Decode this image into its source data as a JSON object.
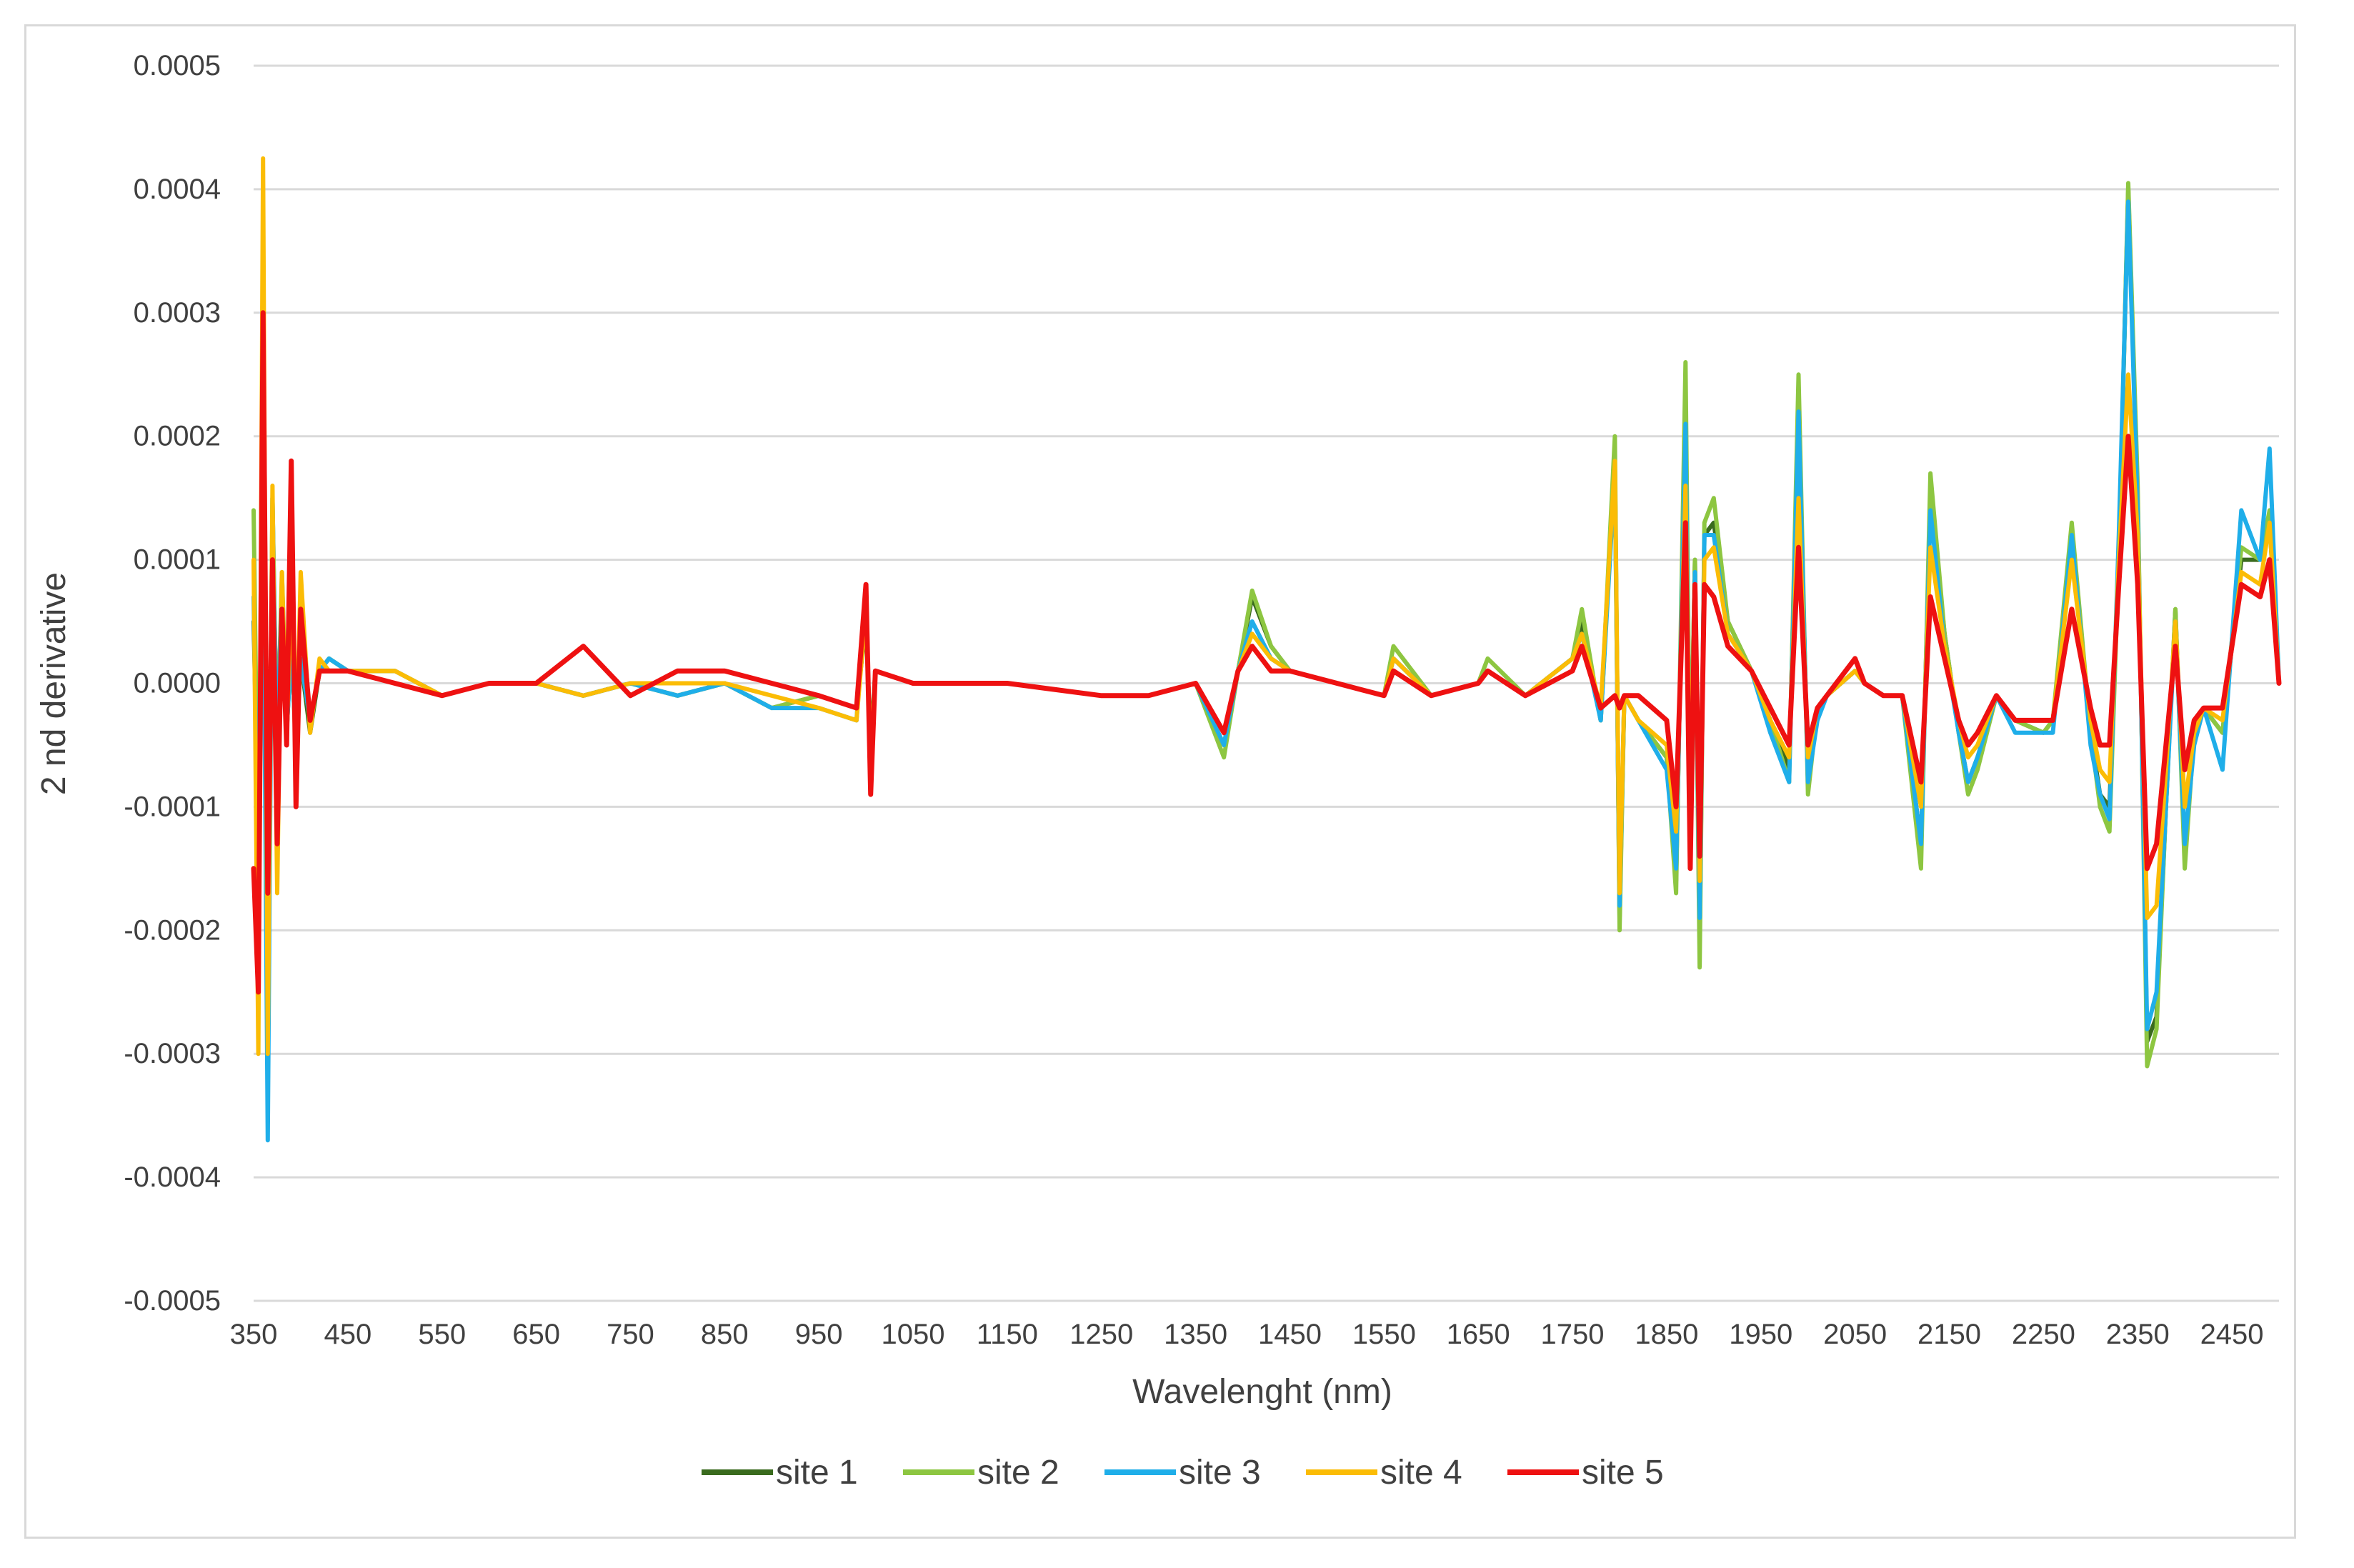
{
  "chart_data": {
    "type": "line",
    "title": "",
    "xlabel": "Wavelenght (nm)",
    "ylabel": "2 nd derivative",
    "xlim": [
      350,
      2500
    ],
    "ylim": [
      -0.0005,
      0.0005
    ],
    "x_ticks": [
      350,
      450,
      550,
      650,
      750,
      850,
      950,
      1050,
      1150,
      1250,
      1350,
      1450,
      1550,
      1650,
      1750,
      1850,
      1950,
      2050,
      2150,
      2250,
      2350,
      2450
    ],
    "x_tick_labels": [
      "350",
      "450",
      "550",
      "650",
      "750",
      "850",
      "950",
      "1050",
      "1150",
      "1250",
      "1350",
      "1450",
      "1550",
      "1650",
      "1750",
      "1850",
      "1950",
      "2050",
      "2150",
      "2250",
      "2350",
      "2450"
    ],
    "y_ticks": [
      0.0005,
      0.0004,
      0.0003,
      0.0002,
      0.0001,
      0,
      -0.0001,
      -0.0002,
      -0.0003,
      -0.0004,
      -0.0005
    ],
    "y_tick_labels": [
      "0.0005",
      "0.0004",
      "0.0003",
      "0.0002",
      "0.0001",
      "0.0000",
      "-0.0001",
      "-0.0002",
      "-0.0003",
      "-0.0004",
      "-0.0005"
    ],
    "grid": "horizontal",
    "legend_position": "bottom",
    "colors": {
      "site 1": "#3a6b1e",
      "site 2": "#8dc641",
      "site 3": "#1faee9",
      "site 4": "#fbbc05",
      "site 5": "#ee1111",
      "grid": "#d9d9d9",
      "axis": "#bfbfbf",
      "text": "#404040"
    },
    "series": [
      {
        "name": "site 1",
        "x": [
          350,
          355,
          360,
          365,
          370,
          375,
          380,
          385,
          390,
          395,
          400,
          410,
          420,
          430,
          450,
          500,
          550,
          600,
          650,
          700,
          750,
          800,
          850,
          900,
          950,
          990,
          1000,
          1005,
          1010,
          1050,
          1150,
          1250,
          1300,
          1350,
          1380,
          1395,
          1410,
          1430,
          1450,
          1500,
          1550,
          1560,
          1600,
          1650,
          1660,
          1700,
          1750,
          1760,
          1780,
          1795,
          1800,
          1805,
          1820,
          1850,
          1860,
          1870,
          1875,
          1880,
          1885,
          1890,
          1900,
          1915,
          1940,
          1960,
          1980,
          1990,
          2000,
          2010,
          2020,
          2050,
          2060,
          2080,
          2100,
          2120,
          2130,
          2145,
          2160,
          2170,
          2180,
          2200,
          2220,
          2250,
          2260,
          2280,
          2300,
          2310,
          2320,
          2330,
          2340,
          2350,
          2360,
          2370,
          2380,
          2390,
          2400,
          2410,
          2420,
          2440,
          2460,
          2480,
          2490,
          2500
        ],
        "values": [
          5e-05,
          -0.00012,
          0.0001,
          -0.0002,
          0.00013,
          -5e-05,
          8e-05,
          -4e-05,
          3e-05,
          -5e-05,
          2e-05,
          -4e-05,
          1e-05,
          2e-05,
          1e-05,
          1e-05,
          -1e-05,
          0.0,
          0.0,
          -1e-05,
          0.0,
          -1e-05,
          0.0,
          -2e-05,
          -1e-05,
          -2e-05,
          5e-05,
          -5e-05,
          1e-05,
          0.0,
          0.0,
          -1e-05,
          -1e-05,
          0.0,
          -5e-05,
          1e-05,
          7e-05,
          3e-05,
          1e-05,
          0.0,
          -1e-05,
          2e-05,
          -1e-05,
          0.0,
          1e-05,
          -1e-05,
          2e-05,
          5e-05,
          -3e-05,
          0.00018,
          -0.00019,
          -1e-05,
          -3e-05,
          -6e-05,
          -0.00016,
          0.00022,
          -0.0001,
          0.0001,
          -0.00021,
          0.00012,
          0.00013,
          5e-05,
          1e-05,
          -3e-05,
          -7e-05,
          0.00022,
          -8e-05,
          -2e-05,
          -1e-05,
          1e-05,
          0.0,
          -1e-05,
          -1e-05,
          -0.00013,
          0.00015,
          4e-05,
          -4e-05,
          -8e-05,
          -6e-05,
          -1e-05,
          -3e-05,
          -4e-05,
          -3e-05,
          0.00011,
          -4e-05,
          -9e-05,
          -0.0001,
          0.0001,
          0.0004,
          0.00015,
          -0.00029,
          -0.00027,
          -0.0001,
          6e-05,
          -0.00014,
          -4e-05,
          -2e-05,
          -4e-05,
          0.0001,
          0.0001,
          0.00013,
          0.0
        ]
      },
      {
        "name": "site 2",
        "x": [
          350,
          355,
          360,
          365,
          370,
          375,
          380,
          385,
          390,
          395,
          400,
          410,
          420,
          430,
          450,
          500,
          550,
          600,
          650,
          700,
          750,
          800,
          850,
          900,
          950,
          990,
          1000,
          1005,
          1010,
          1050,
          1150,
          1250,
          1300,
          1350,
          1380,
          1395,
          1410,
          1430,
          1450,
          1500,
          1550,
          1560,
          1600,
          1650,
          1660,
          1700,
          1750,
          1760,
          1780,
          1795,
          1800,
          1805,
          1820,
          1850,
          1860,
          1870,
          1875,
          1880,
          1885,
          1890,
          1900,
          1915,
          1940,
          1960,
          1980,
          1990,
          2000,
          2010,
          2020,
          2050,
          2060,
          2080,
          2100,
          2120,
          2130,
          2145,
          2160,
          2170,
          2180,
          2200,
          2220,
          2250,
          2260,
          2280,
          2300,
          2310,
          2320,
          2330,
          2340,
          2350,
          2360,
          2370,
          2380,
          2390,
          2400,
          2410,
          2420,
          2440,
          2460,
          2480,
          2490,
          2500
        ],
        "values": [
          0.00014,
          -0.00015,
          0.00012,
          -0.00024,
          0.00015,
          -6e-05,
          9e-05,
          -3e-05,
          4e-05,
          -6e-05,
          2e-05,
          -3e-05,
          1e-05,
          2e-05,
          1e-05,
          1e-05,
          -1e-05,
          0.0,
          0.0,
          -1e-05,
          0.0,
          -1e-05,
          0.0,
          -2e-05,
          -1e-05,
          -2e-05,
          6e-05,
          -6e-05,
          1e-05,
          0.0,
          0.0,
          -1e-05,
          -1e-05,
          0.0,
          -6e-05,
          1e-05,
          7.5e-05,
          3e-05,
          1e-05,
          0.0,
          -1e-05,
          3e-05,
          -1e-05,
          0.0,
          2e-05,
          -1e-05,
          2e-05,
          6e-05,
          -3e-05,
          0.0002,
          -0.0002,
          -1e-05,
          -3e-05,
          -6e-05,
          -0.00017,
          0.00026,
          -0.0001,
          0.0001,
          -0.00023,
          0.00013,
          0.00015,
          5e-05,
          1e-05,
          -3e-05,
          -8e-05,
          0.00025,
          -9e-05,
          -2e-05,
          -1e-05,
          1e-05,
          0.0,
          -1e-05,
          -1e-05,
          -0.00015,
          0.00017,
          4e-05,
          -4e-05,
          -9e-05,
          -7e-05,
          -1e-05,
          -3e-05,
          -4e-05,
          -3e-05,
          0.00013,
          -4e-05,
          -0.0001,
          -0.00012,
          0.0001,
          0.000405,
          0.00016,
          -0.00031,
          -0.00028,
          -0.0001,
          6e-05,
          -0.00015,
          -4e-05,
          -2e-05,
          -4e-05,
          0.00011,
          0.0001,
          0.00014,
          0.0
        ]
      },
      {
        "name": "site 3",
        "x": [
          350,
          355,
          360,
          365,
          370,
          375,
          380,
          385,
          390,
          395,
          400,
          410,
          420,
          430,
          450,
          500,
          550,
          600,
          650,
          700,
          750,
          800,
          850,
          900,
          950,
          990,
          1000,
          1005,
          1010,
          1050,
          1150,
          1250,
          1300,
          1350,
          1380,
          1395,
          1410,
          1430,
          1450,
          1500,
          1550,
          1560,
          1600,
          1650,
          1660,
          1700,
          1750,
          1760,
          1780,
          1795,
          1800,
          1805,
          1820,
          1850,
          1860,
          1870,
          1875,
          1880,
          1885,
          1890,
          1900,
          1915,
          1940,
          1960,
          1980,
          1990,
          2000,
          2010,
          2020,
          2050,
          2060,
          2080,
          2100,
          2120,
          2130,
          2145,
          2160,
          2170,
          2180,
          2200,
          2220,
          2250,
          2260,
          2280,
          2300,
          2310,
          2320,
          2330,
          2340,
          2350,
          2360,
          2370,
          2380,
          2390,
          2400,
          2410,
          2420,
          2440,
          2460,
          2480,
          2490,
          2500
        ],
        "values": [
          7e-05,
          -0.00017,
          0.00015,
          -0.00037,
          0.00015,
          -7e-05,
          8e-05,
          -4e-05,
          3e-05,
          -5e-05,
          2e-05,
          -3e-05,
          1e-05,
          2e-05,
          1e-05,
          0.0,
          -1e-05,
          0.0,
          0.0,
          -1e-05,
          0.0,
          -1e-05,
          0.0,
          -2e-05,
          -2e-05,
          -3e-05,
          8e-05,
          -8e-05,
          1e-05,
          0.0,
          0.0,
          -1e-05,
          -1e-05,
          0.0,
          -5e-05,
          1e-05,
          5e-05,
          2e-05,
          1e-05,
          0.0,
          -1e-05,
          2e-05,
          -1e-05,
          0.0,
          1e-05,
          -1e-05,
          2e-05,
          4e-05,
          -3e-05,
          0.00017,
          -0.00018,
          -1e-05,
          -3e-05,
          -7e-05,
          -0.00015,
          0.00021,
          -0.00011,
          9e-05,
          -0.00019,
          0.00012,
          0.00012,
          4e-05,
          1e-05,
          -4e-05,
          -8e-05,
          0.00022,
          -8e-05,
          -3e-05,
          -1e-05,
          1e-05,
          0.0,
          -1e-05,
          -1e-05,
          -0.00013,
          0.00014,
          3e-05,
          -4e-05,
          -8e-05,
          -6e-05,
          -1e-05,
          -4e-05,
          -4e-05,
          -4e-05,
          0.00012,
          -5e-05,
          -9e-05,
          -0.00011,
          0.00012,
          0.00039,
          0.00014,
          -0.00028,
          -0.00025,
          -0.0001,
          5e-05,
          -0.00013,
          -5e-05,
          -2e-05,
          -7e-05,
          0.00014,
          0.0001,
          0.00019,
          0.0
        ]
      },
      {
        "name": "site 4",
        "x": [
          350,
          355,
          360,
          365,
          370,
          375,
          380,
          385,
          390,
          395,
          400,
          410,
          420,
          430,
          450,
          500,
          550,
          600,
          650,
          700,
          750,
          800,
          850,
          900,
          950,
          990,
          1000,
          1005,
          1010,
          1050,
          1150,
          1250,
          1300,
          1350,
          1380,
          1395,
          1410,
          1430,
          1450,
          1500,
          1550,
          1560,
          1600,
          1650,
          1660,
          1700,
          1750,
          1760,
          1780,
          1795,
          1800,
          1805,
          1820,
          1850,
          1860,
          1870,
          1875,
          1880,
          1885,
          1890,
          1900,
          1915,
          1940,
          1960,
          1980,
          1990,
          2000,
          2010,
          2020,
          2050,
          2060,
          2080,
          2100,
          2120,
          2130,
          2145,
          2160,
          2170,
          2180,
          2200,
          2220,
          2250,
          2260,
          2280,
          2300,
          2310,
          2320,
          2330,
          2340,
          2350,
          2360,
          2370,
          2380,
          2390,
          2400,
          2410,
          2420,
          2440,
          2460,
          2480,
          2490,
          2500
        ],
        "values": [
          0.0001,
          -0.0003,
          0.000425,
          -0.0003,
          0.00016,
          -0.00017,
          9e-05,
          -5e-05,
          9e-05,
          -7e-05,
          9e-05,
          -4e-05,
          2e-05,
          1e-05,
          1e-05,
          1e-05,
          -1e-05,
          0.0,
          0.0,
          -1e-05,
          0.0,
          0.0,
          0.0,
          -1e-05,
          -2e-05,
          -3e-05,
          6e-05,
          -6e-05,
          1e-05,
          0.0,
          0.0,
          -1e-05,
          -1e-05,
          0.0,
          -4e-05,
          1e-05,
          4e-05,
          2e-05,
          1e-05,
          0.0,
          -1e-05,
          2e-05,
          -1e-05,
          0.0,
          1e-05,
          -1e-05,
          2e-05,
          4e-05,
          -2e-05,
          0.00018,
          -0.00017,
          -1e-05,
          -3e-05,
          -5e-05,
          -0.00012,
          0.00016,
          -9e-05,
          8e-05,
          -0.00016,
          0.0001,
          0.00011,
          4e-05,
          1e-05,
          -3e-05,
          -6e-05,
          0.00015,
          -6e-05,
          -2e-05,
          -1e-05,
          1e-05,
          0.0,
          -1e-05,
          -1e-05,
          -0.0001,
          0.00011,
          3e-05,
          -3e-05,
          -6e-05,
          -5e-05,
          -1e-05,
          -3e-05,
          -3e-05,
          -3e-05,
          0.0001,
          -3e-05,
          -7e-05,
          -8e-05,
          0.0001,
          0.00025,
          0.00012,
          -0.00019,
          -0.00018,
          -7e-05,
          5e-05,
          -0.0001,
          -4e-05,
          -2e-05,
          -3e-05,
          9e-05,
          8e-05,
          0.00013,
          0.0
        ]
      },
      {
        "name": "site 5",
        "x": [
          350,
          355,
          360,
          365,
          370,
          375,
          380,
          385,
          390,
          395,
          400,
          410,
          420,
          430,
          450,
          500,
          550,
          600,
          650,
          700,
          750,
          800,
          850,
          900,
          950,
          990,
          1000,
          1005,
          1010,
          1050,
          1150,
          1250,
          1300,
          1350,
          1380,
          1395,
          1410,
          1430,
          1450,
          1500,
          1550,
          1560,
          1600,
          1650,
          1660,
          1700,
          1750,
          1760,
          1780,
          1795,
          1800,
          1805,
          1820,
          1850,
          1860,
          1870,
          1875,
          1880,
          1885,
          1890,
          1900,
          1915,
          1940,
          1960,
          1980,
          1990,
          2000,
          2010,
          2020,
          2050,
          2060,
          2080,
          2100,
          2120,
          2130,
          2145,
          2160,
          2170,
          2180,
          2200,
          2220,
          2250,
          2260,
          2280,
          2300,
          2310,
          2320,
          2330,
          2340,
          2350,
          2360,
          2370,
          2380,
          2390,
          2400,
          2410,
          2420,
          2440,
          2460,
          2480,
          2490,
          2500
        ],
        "values": [
          -0.00015,
          -0.00025,
          0.0003,
          -0.00017,
          0.0001,
          -0.00013,
          6e-05,
          -5e-05,
          0.00018,
          -0.0001,
          6e-05,
          -3e-05,
          1e-05,
          1e-05,
          1e-05,
          0.0,
          -1e-05,
          0.0,
          0.0,
          3e-05,
          -1e-05,
          1e-05,
          1e-05,
          0.0,
          -1e-05,
          -2e-05,
          8e-05,
          -9e-05,
          1e-05,
          0.0,
          0.0,
          -1e-05,
          -1e-05,
          0.0,
          -4e-05,
          1e-05,
          3e-05,
          1e-05,
          1e-05,
          0.0,
          -1e-05,
          1e-05,
          -1e-05,
          0.0,
          1e-05,
          -1e-05,
          1e-05,
          3e-05,
          -2e-05,
          -1e-05,
          -2e-05,
          -1e-05,
          -1e-05,
          -3e-05,
          -0.0001,
          0.00013,
          -0.00015,
          8e-05,
          -0.00014,
          8e-05,
          7e-05,
          3e-05,
          1e-05,
          -2e-05,
          -5e-05,
          0.00011,
          -5e-05,
          -2e-05,
          -1e-05,
          2e-05,
          0.0,
          -1e-05,
          -1e-05,
          -8e-05,
          7e-05,
          2e-05,
          -3e-05,
          -5e-05,
          -4e-05,
          -1e-05,
          -3e-05,
          -3e-05,
          -3e-05,
          6e-05,
          -2e-05,
          -5e-05,
          -5e-05,
          8e-05,
          0.0002,
          8e-05,
          -0.00015,
          -0.00013,
          -5e-05,
          3e-05,
          -7e-05,
          -3e-05,
          -2e-05,
          -2e-05,
          8e-05,
          7e-05,
          0.0001,
          0.0
        ]
      }
    ]
  }
}
